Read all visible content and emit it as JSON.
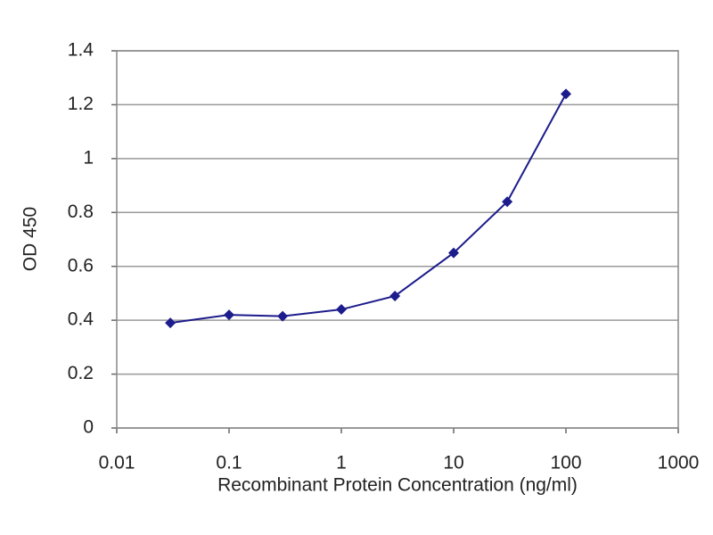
{
  "chart_data": {
    "type": "line",
    "xlabel": "Recombinant Protein Concentration (ng/ml)",
    "ylabel": "OD 450",
    "x": [
      0.03,
      0.1,
      0.3,
      1,
      3,
      10,
      30,
      100
    ],
    "values": [
      0.39,
      0.42,
      0.415,
      0.44,
      0.49,
      0.65,
      0.84,
      1.24
    ],
    "color": "#1c1c8c",
    "xscale": "log",
    "xlim": [
      0.01,
      1000
    ],
    "xticks": [
      0.01,
      0.1,
      1,
      10,
      100,
      1000
    ],
    "ylim": [
      0,
      1.4
    ],
    "yticks": [
      0,
      0.2,
      0.4,
      0.6,
      0.8,
      1,
      1.2,
      1.4
    ],
    "grid": true
  }
}
